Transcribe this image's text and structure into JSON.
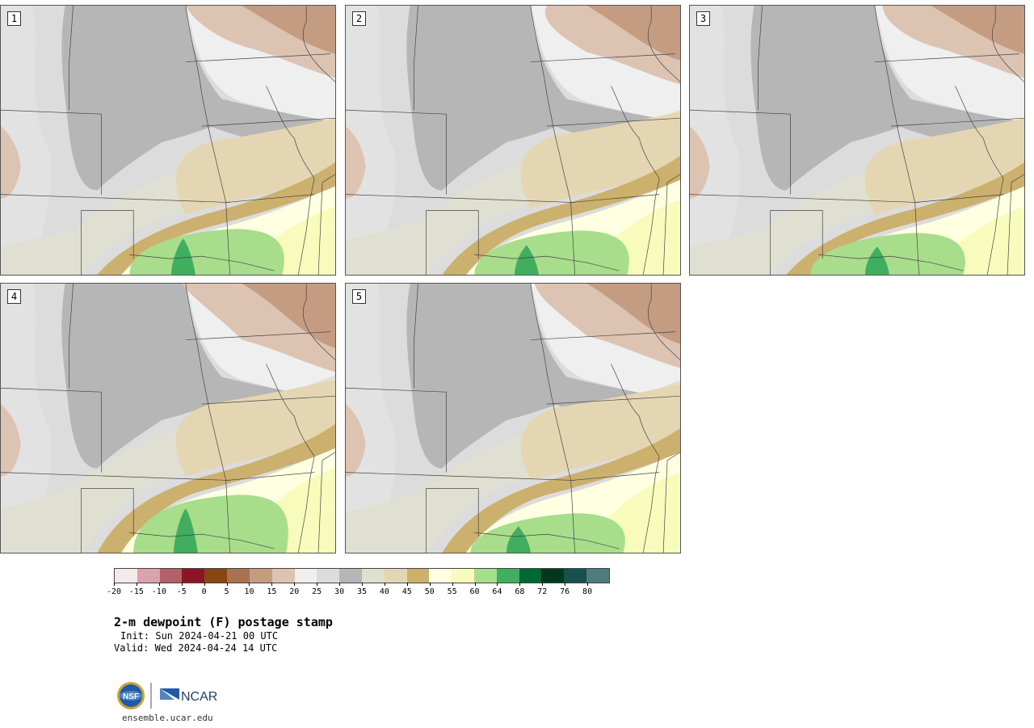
{
  "panels": [
    {
      "label": "1"
    },
    {
      "label": "2"
    },
    {
      "label": "3"
    },
    {
      "label": "4"
    },
    {
      "label": "5"
    }
  ],
  "colorbar": {
    "colors": [
      "#f6e9ec",
      "#d8a3aa",
      "#b2606a",
      "#8c1623",
      "#884615",
      "#a97350",
      "#c49c82",
      "#dcc3b2",
      "#efefef",
      "#dcdcdc",
      "#b6b6b6",
      "#e0e0d2",
      "#e5d6b3",
      "#cbb06e",
      "#ffffe1",
      "#f7fbbb",
      "#a8dd8b",
      "#41ad5e",
      "#006837",
      "#00391c",
      "#17514d",
      "#4e7a80"
    ],
    "tick_labels": [
      "-20",
      "-15",
      "-10",
      "-5",
      "0",
      "5",
      "10",
      "15",
      "20",
      "25",
      "30",
      "35",
      "40",
      "45",
      "50",
      "55",
      "60",
      "64",
      "68",
      "72",
      "76",
      "80"
    ]
  },
  "title": "2-m dewpoint (F) postage stamp",
  "init": "Init: Sun 2024-04-21 00 UTC",
  "valid": "Valid: Wed 2024-04-24 14 UTC",
  "logos": {
    "nsf_text": "NSF",
    "ncar_text": "NCAR"
  },
  "site": "ensemble.ucar.edu"
}
